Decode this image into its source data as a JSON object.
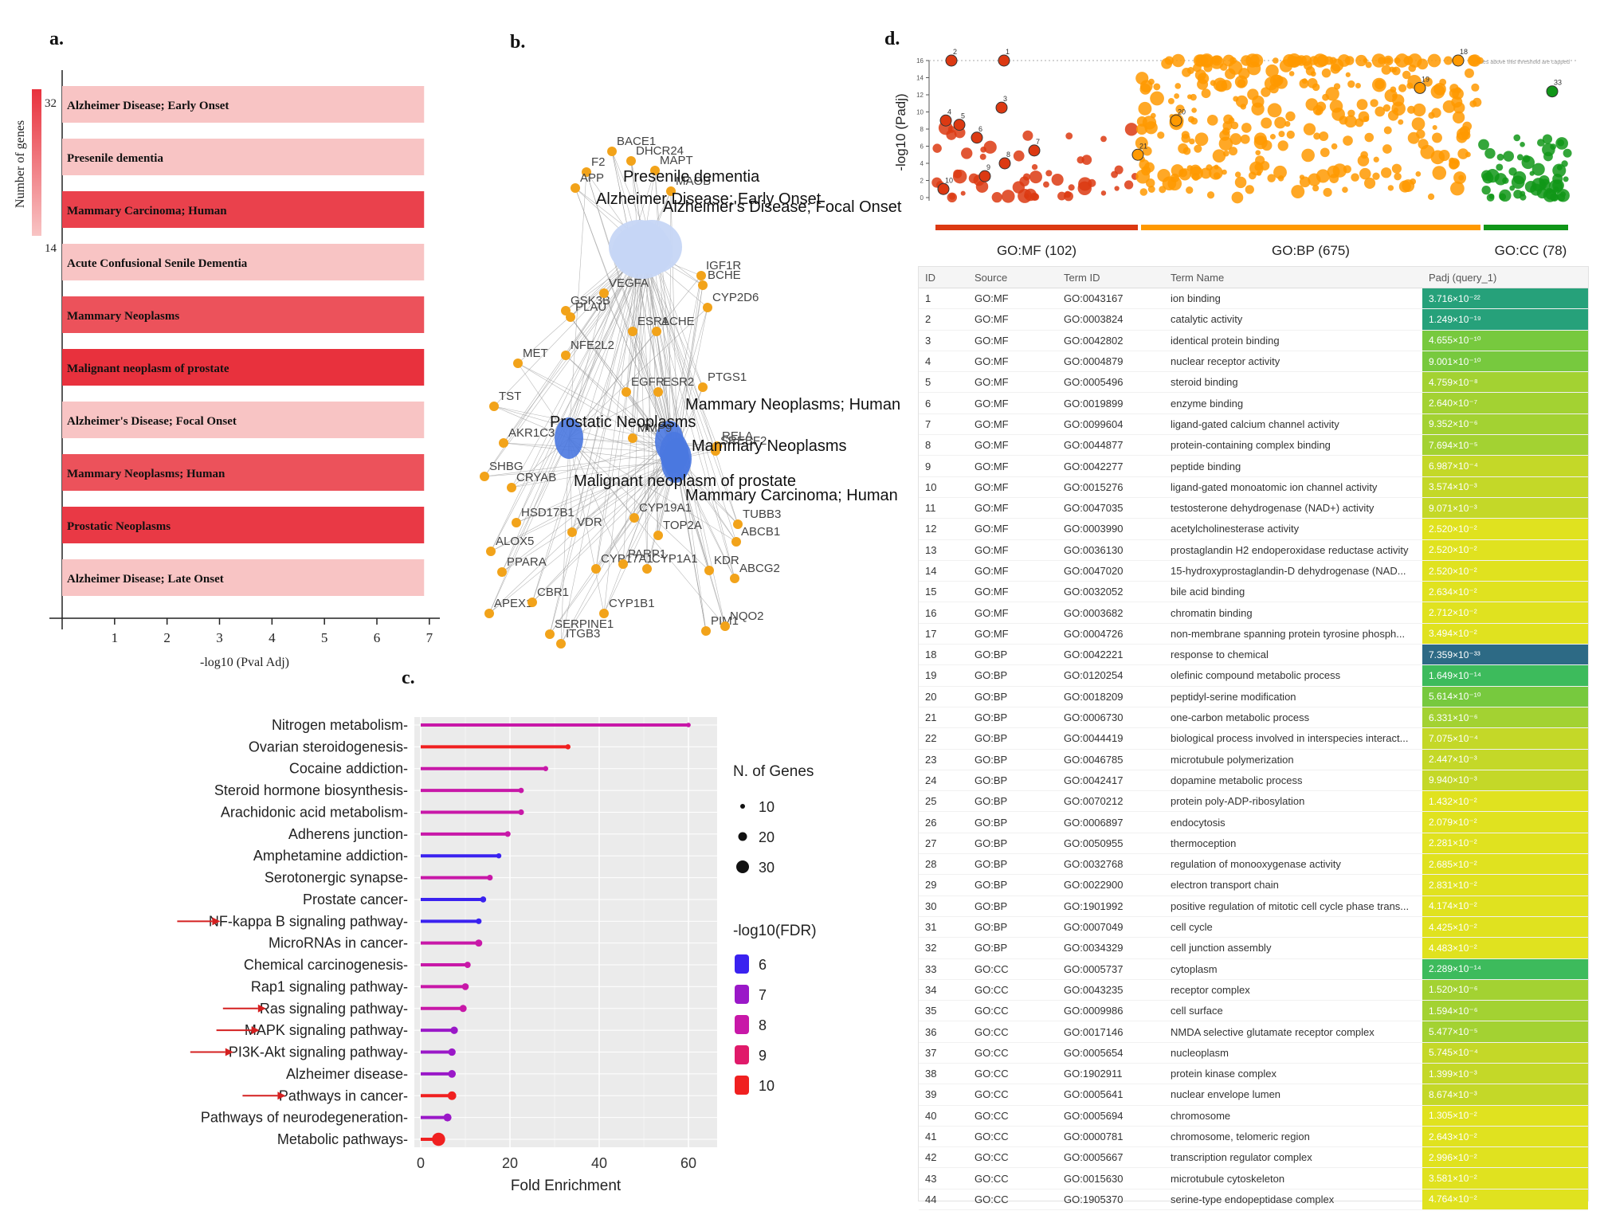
{
  "panel_labels": {
    "a": "a.",
    "b": "b.",
    "c": "c.",
    "d": "d."
  },
  "chart_data": [
    {
      "panel": "a",
      "type": "bar",
      "orientation": "horizontal",
      "xlabel": "-log10 (Pval Adj)",
      "ylabel": "Number of genes",
      "xlim": [
        0,
        7.2
      ],
      "xticks": [
        1,
        2,
        3,
        4,
        5,
        6,
        7
      ],
      "colorbar": {
        "min_label": "14",
        "max_label": "32",
        "low_color": "#f8c4c4",
        "high_color": "#e8313d"
      },
      "categories": [
        "Alzheimer Disease; Early Onset",
        "Presenile dementia",
        "Mammary Carcinoma; Human",
        "Acute Confusional Senile Dementia",
        "Mammary Neoplasms",
        "Malignant neoplasm of prostate",
        "Alzheimer's Disease; Focal Onset",
        "Mammary Neoplasms; Human",
        "Prostatic Neoplasms",
        "Alzheimer Disease; Late Onset"
      ],
      "values": [
        6.9,
        6.9,
        6.9,
        6.9,
        6.9,
        6.9,
        6.9,
        6.9,
        6.9,
        6.9
      ],
      "gene_counts": [
        14,
        14,
        30,
        14,
        28,
        32,
        14,
        28,
        31,
        14
      ]
    },
    {
      "panel": "b",
      "type": "network",
      "hubs": [
        {
          "name": "Presenile dementia",
          "group": "alz"
        },
        {
          "name": "Alzheimer Disease; Early Onset",
          "group": "alz"
        },
        {
          "name": "Alzheimer's Disease; Focal Onset",
          "group": "alz"
        },
        {
          "name": "Prostatic Neoplasms",
          "group": "cancer"
        },
        {
          "name": "Mammary Neoplasms; Human",
          "group": "cancer"
        },
        {
          "name": "Mammary Neoplasms",
          "group": "cancer"
        },
        {
          "name": "Malignant neoplasm of prostate",
          "group": "cancer"
        },
        {
          "name": "Mammary Carcinoma; Human",
          "group": "cancer"
        }
      ],
      "genes": [
        "BACE1",
        "F2",
        "DHCR24",
        "MAPT",
        "APP",
        "MAOB",
        "GSK3B",
        "VEGFA",
        "PLAU",
        "IGF1R",
        "BCHE",
        "CYP2D6",
        "ESR1",
        "ACHE",
        "NFE2L2",
        "MET",
        "EGFR",
        "ESR2",
        "PTGS1",
        "TST",
        "AKR1C3",
        "RELA",
        "MMP9",
        "SREBF2",
        "SHBG",
        "CRYAB",
        "HSD17B1",
        "CYP19A1",
        "TUBB3",
        "ABCB1",
        "ALOX5",
        "VDR",
        "TOP2A",
        "PPARA",
        "CYP17A1",
        "PARP1",
        "CYP1A1",
        "KDR",
        "ABCG2",
        "APEX1",
        "CBR1",
        "CYP1B1",
        "PIM1",
        "NQO2",
        "SERPINE1",
        "ITGB3"
      ]
    },
    {
      "panel": "c",
      "type": "lollipop",
      "xlabel": "Fold Enrichment",
      "xlim": [
        0,
        65
      ],
      "xticks": [
        0,
        20,
        40,
        60
      ],
      "size_legend": {
        "title": "N. of Genes",
        "values": [
          10,
          20,
          30
        ]
      },
      "color_legend": {
        "title": "-log10(FDR)",
        "values": [
          6,
          7,
          8,
          9,
          10
        ],
        "colors": [
          "#3a22f0",
          "#9a18c8",
          "#c818a8",
          "#e01a6a",
          "#f02020"
        ]
      },
      "categories": [
        "Nitrogen metabolism",
        "Ovarian steroidogenesis",
        "Cocaine addiction",
        "Steroid hormone biosynthesis",
        "Arachidonic acid metabolism",
        "Adherens junction",
        "Amphetamine addiction",
        "Serotonergic synapse",
        "Prostate cancer",
        "NF-kappa B signaling pathway",
        "MicroRNAs in cancer",
        "Chemical carcinogenesis",
        "Rap1 signaling pathway",
        "Ras signaling pathway",
        "MAPK signaling pathway",
        "PI3K-Akt signaling pathway",
        "Alzheimer disease",
        "Pathways in cancer",
        "Pathways of neurodegeneration",
        "Metabolic pathways"
      ],
      "values": [
        60,
        33,
        28,
        22.5,
        22.5,
        19.5,
        17.5,
        15.5,
        14,
        13,
        13,
        10.5,
        10,
        9.5,
        7.5,
        7,
        7,
        7,
        6,
        4
      ],
      "n_genes": [
        2,
        4,
        4,
        5,
        6,
        6,
        4,
        6,
        7,
        6,
        11,
        8,
        10,
        11,
        12,
        12,
        13,
        16,
        14,
        32
      ],
      "neg_log10_fdr": [
        8,
        10,
        8,
        8,
        8,
        8,
        6,
        8,
        6,
        6,
        8,
        8,
        8,
        8,
        7,
        7,
        7,
        10,
        7,
        10
      ],
      "highlighted": [
        "NF-kappa B signaling pathway",
        "Ras signaling pathway",
        "MAPK signaling pathway",
        "PI3K-Akt signaling pathway",
        "Pathways in cancer"
      ]
    },
    {
      "panel": "d",
      "type": "scatter",
      "ylabel": "-log10 (Padj)",
      "ylim": [
        0,
        16
      ],
      "yticks": [
        0,
        2,
        4,
        6,
        8,
        10,
        12,
        14,
        16
      ],
      "capped_note": "values above this threshold are capped",
      "sources": [
        {
          "name": "GO:MF",
          "label": "GO:MF (102)",
          "count": 102,
          "color": "#dc3912"
        },
        {
          "name": "GO:BP",
          "label": "GO:BP (675)",
          "count": 675,
          "color": "#ff9900"
        },
        {
          "name": "GO:CC",
          "label": "GO:CC (78)",
          "count": 78,
          "color": "#109618"
        }
      ],
      "highlighted_ids": [
        "1",
        "2",
        "3",
        "4",
        "5",
        "6",
        "7",
        "8",
        "9",
        "10",
        "11",
        "12",
        "13",
        "14",
        "15",
        "16",
        "17",
        "18",
        "19",
        "20",
        "21",
        "22",
        "23",
        "24",
        "25",
        "26",
        "27",
        "28",
        "29",
        "30",
        "31",
        "32",
        "33",
        "34",
        "35",
        "36",
        "37",
        "38",
        "39",
        "40",
        "41",
        "42",
        "43",
        "44"
      ]
    }
  ],
  "table": {
    "headers": [
      "ID",
      "Source",
      "Term ID",
      "Term Name",
      "Padj (query_1)"
    ],
    "rows": [
      [
        "1",
        "GO:MF",
        "GO:0043167",
        "ion binding",
        "3.716×10⁻²²"
      ],
      [
        "2",
        "GO:MF",
        "GO:0003824",
        "catalytic activity",
        "1.249×10⁻¹⁹"
      ],
      [
        "3",
        "GO:MF",
        "GO:0042802",
        "identical protein binding",
        "4.655×10⁻¹⁰"
      ],
      [
        "4",
        "GO:MF",
        "GO:0004879",
        "nuclear receptor activity",
        "9.001×10⁻¹⁰"
      ],
      [
        "5",
        "GO:MF",
        "GO:0005496",
        "steroid binding",
        "4.759×10⁻⁸"
      ],
      [
        "6",
        "GO:MF",
        "GO:0019899",
        "enzyme binding",
        "2.640×10⁻⁷"
      ],
      [
        "7",
        "GO:MF",
        "GO:0099604",
        "ligand-gated calcium channel activity",
        "9.352×10⁻⁶"
      ],
      [
        "8",
        "GO:MF",
        "GO:0044877",
        "protein-containing complex binding",
        "7.694×10⁻⁵"
      ],
      [
        "9",
        "GO:MF",
        "GO:0042277",
        "peptide binding",
        "6.987×10⁻⁴"
      ],
      [
        "10",
        "GO:MF",
        "GO:0015276",
        "ligand-gated monoatomic ion channel activity",
        "3.574×10⁻³"
      ],
      [
        "11",
        "GO:MF",
        "GO:0047035",
        "testosterone dehydrogenase (NAD+) activity",
        "9.071×10⁻³"
      ],
      [
        "12",
        "GO:MF",
        "GO:0003990",
        "acetylcholinesterase activity",
        "2.520×10⁻²"
      ],
      [
        "13",
        "GO:MF",
        "GO:0036130",
        "prostaglandin H2 endoperoxidase reductase activity",
        "2.520×10⁻²"
      ],
      [
        "14",
        "GO:MF",
        "GO:0047020",
        "15-hydroxyprostaglandin-D dehydrogenase (NAD...",
        "2.520×10⁻²"
      ],
      [
        "15",
        "GO:MF",
        "GO:0032052",
        "bile acid binding",
        "2.634×10⁻²"
      ],
      [
        "16",
        "GO:MF",
        "GO:0003682",
        "chromatin binding",
        "2.712×10⁻²"
      ],
      [
        "17",
        "GO:MF",
        "GO:0004726",
        "non-membrane spanning protein tyrosine phosph...",
        "3.494×10⁻²"
      ],
      [
        "18",
        "GO:BP",
        "GO:0042221",
        "response to chemical",
        "7.359×10⁻³³"
      ],
      [
        "19",
        "GO:BP",
        "GO:0120254",
        "olefinic compound metabolic process",
        "1.649×10⁻¹⁴"
      ],
      [
        "20",
        "GO:BP",
        "GO:0018209",
        "peptidyl-serine modification",
        "5.614×10⁻¹⁰"
      ],
      [
        "21",
        "GO:BP",
        "GO:0006730",
        "one-carbon metabolic process",
        "6.331×10⁻⁶"
      ],
      [
        "22",
        "GO:BP",
        "GO:0044419",
        "biological process involved in interspecies interact...",
        "7.075×10⁻⁴"
      ],
      [
        "23",
        "GO:BP",
        "GO:0046785",
        "microtubule polymerization",
        "2.447×10⁻³"
      ],
      [
        "24",
        "GO:BP",
        "GO:0042417",
        "dopamine metabolic process",
        "9.940×10⁻³"
      ],
      [
        "25",
        "GO:BP",
        "GO:0070212",
        "protein poly-ADP-ribosylation",
        "1.432×10⁻²"
      ],
      [
        "26",
        "GO:BP",
        "GO:0006897",
        "endocytosis",
        "2.079×10⁻²"
      ],
      [
        "27",
        "GO:BP",
        "GO:0050955",
        "thermoception",
        "2.281×10⁻²"
      ],
      [
        "28",
        "GO:BP",
        "GO:0032768",
        "regulation of monooxygenase activity",
        "2.685×10⁻²"
      ],
      [
        "29",
        "GO:BP",
        "GO:0022900",
        "electron transport chain",
        "2.831×10⁻²"
      ],
      [
        "30",
        "GO:BP",
        "GO:1901992",
        "positive regulation of mitotic cell cycle phase trans...",
        "4.174×10⁻²"
      ],
      [
        "31",
        "GO:BP",
        "GO:0007049",
        "cell cycle",
        "4.425×10⁻²"
      ],
      [
        "32",
        "GO:BP",
        "GO:0034329",
        "cell junction assembly",
        "4.483×10⁻²"
      ],
      [
        "33",
        "GO:CC",
        "GO:0005737",
        "cytoplasm",
        "2.289×10⁻¹⁴"
      ],
      [
        "34",
        "GO:CC",
        "GO:0043235",
        "receptor complex",
        "1.520×10⁻⁶"
      ],
      [
        "35",
        "GO:CC",
        "GO:0009986",
        "cell surface",
        "1.594×10⁻⁶"
      ],
      [
        "36",
        "GO:CC",
        "GO:0017146",
        "NMDA selective glutamate receptor complex",
        "5.477×10⁻⁵"
      ],
      [
        "37",
        "GO:CC",
        "GO:0005654",
        "nucleoplasm",
        "5.745×10⁻⁴"
      ],
      [
        "38",
        "GO:CC",
        "GO:1902911",
        "protein kinase complex",
        "1.399×10⁻³"
      ],
      [
        "39",
        "GO:CC",
        "GO:0005641",
        "nuclear envelope lumen",
        "8.674×10⁻³"
      ],
      [
        "40",
        "GO:CC",
        "GO:0005694",
        "chromosome",
        "1.305×10⁻²"
      ],
      [
        "41",
        "GO:CC",
        "GO:0000781",
        "chromosome, telomeric region",
        "2.643×10⁻²"
      ],
      [
        "42",
        "GO:CC",
        "GO:0005667",
        "transcription regulator complex",
        "2.996×10⁻²"
      ],
      [
        "43",
        "GO:CC",
        "GO:0015630",
        "microtubule cytoskeleton",
        "3.581×10⁻²"
      ],
      [
        "44",
        "GO:CC",
        "GO:1905370",
        "serine-type endopeptidase complex",
        "4.764×10⁻²"
      ]
    ]
  }
}
